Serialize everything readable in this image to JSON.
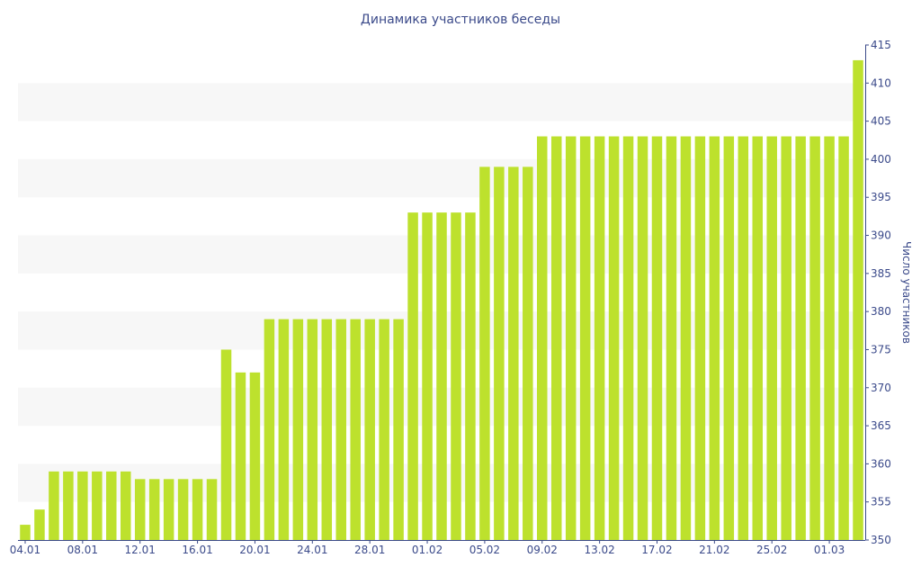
{
  "chart_data": {
    "type": "bar",
    "title": "Динамика участников беседы",
    "xlabel": "",
    "ylabel": "Число участников",
    "ylim": [
      350,
      415
    ],
    "y_axis_side": "right",
    "y_ticks": [
      350,
      355,
      360,
      365,
      370,
      375,
      380,
      385,
      390,
      395,
      400,
      405,
      410,
      415
    ],
    "x_tick_labels": [
      "04.01",
      "08.01",
      "12.01",
      "16.01",
      "20.01",
      "24.01",
      "28.01",
      "01.02",
      "05.02",
      "09.02",
      "13.02",
      "17.02",
      "21.02",
      "25.02",
      "01.03"
    ],
    "categories": [
      "04.01",
      "05.01",
      "06.01",
      "07.01",
      "08.01",
      "09.01",
      "10.01",
      "11.01",
      "12.01",
      "13.01",
      "14.01",
      "15.01",
      "16.01",
      "17.01",
      "18.01",
      "19.01",
      "20.01",
      "21.01",
      "22.01",
      "23.01",
      "24.01",
      "25.01",
      "26.01",
      "27.01",
      "28.01",
      "29.01",
      "30.01",
      "31.01",
      "01.02",
      "02.02",
      "03.02",
      "04.02",
      "05.02",
      "06.02",
      "07.02",
      "08.02",
      "09.02",
      "10.02",
      "11.02",
      "12.02",
      "13.02",
      "14.02",
      "15.02",
      "16.02",
      "17.02",
      "18.02",
      "19.02",
      "20.02",
      "21.02",
      "22.02",
      "23.02",
      "24.02",
      "25.02",
      "26.02",
      "27.02",
      "28.02",
      "01.03",
      "02.03",
      "03.03"
    ],
    "values": [
      352,
      354,
      359,
      359,
      359,
      359,
      359,
      359,
      358,
      358,
      358,
      358,
      358,
      358,
      375,
      372,
      372,
      379,
      379,
      379,
      379,
      379,
      379,
      379,
      379,
      379,
      379,
      393,
      393,
      393,
      393,
      393,
      399,
      399,
      399,
      399,
      403,
      403,
      403,
      403,
      403,
      403,
      403,
      403,
      403,
      403,
      403,
      403,
      403,
      403,
      403,
      403,
      403,
      403,
      403,
      403,
      403,
      403,
      413
    ],
    "bar_color": "#bde12d",
    "band_color": "#f7f7f7",
    "text_color": "#3b4a8a"
  }
}
